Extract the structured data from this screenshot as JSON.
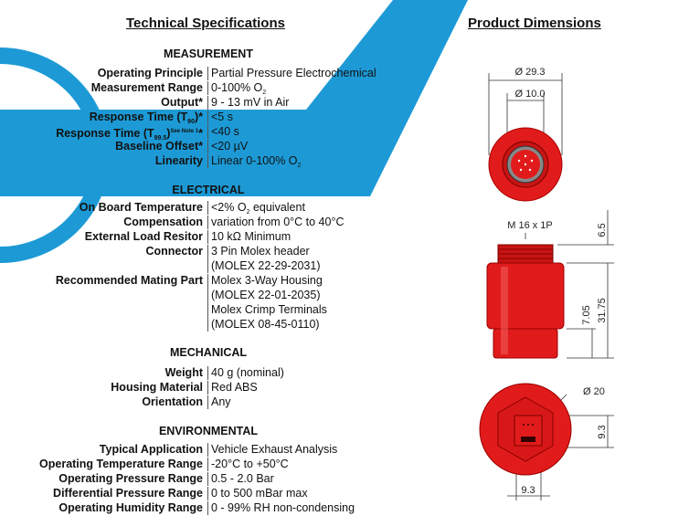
{
  "left_title": "Technical Specifications",
  "right_title": "Product Dimensions",
  "sections": [
    {
      "heading": "MEASUREMENT",
      "rows": [
        {
          "label": "Operating Principle",
          "values": [
            "Partial Pressure Electrochemical"
          ]
        },
        {
          "label": "Measurement Range",
          "values": [
            [
              "0-100% O",
              {
                "sub": "2"
              }
            ]
          ]
        },
        {
          "label": "Output*",
          "values": [
            "9 - 13 mV in Air"
          ]
        },
        {
          "label": [
            "Response Time (T",
            {
              "sub": "90"
            },
            ")*"
          ],
          "values": [
            "<5 s"
          ]
        },
        {
          "label": [
            "Response Time (T",
            {
              "sub": "99.5"
            },
            ")",
            {
              "sup": "See Note 1"
            },
            "*"
          ],
          "values": [
            "<40 s"
          ]
        },
        {
          "label": "Baseline  Offset*",
          "values": [
            "<20 µV"
          ]
        },
        {
          "label": "Linearity",
          "values": [
            [
              "Linear 0-100% O",
              {
                "sub": "2"
              }
            ]
          ]
        }
      ]
    },
    {
      "heading": "ELECTRICAL",
      "rows": [
        {
          "label": "On Board Temperature",
          "values": [
            [
              "<2% O",
              {
                "sub": "2"
              },
              " equivalent"
            ]
          ]
        },
        {
          "label": "Compensation",
          "values": [
            "variation from 0°C to 40°C"
          ]
        },
        {
          "label": "External  Load Resitor",
          "values": [
            "10 kΩ Minimum"
          ]
        },
        {
          "label": "Connector",
          "values": [
            "3 Pin Molex header",
            "(MOLEX 22-29-2031)"
          ]
        },
        {
          "label": "Recommended Mating Part",
          "values": [
            "Molex 3-Way Housing",
            "(MOLEX 22-01-2035)",
            "Molex Crimp Terminals",
            "(MOLEX 08-45-0110)"
          ]
        }
      ]
    },
    {
      "heading": "MECHANICAL",
      "rows": [
        {
          "label": "Weight",
          "values": [
            "40 g (nominal)"
          ]
        },
        {
          "label": "Housing Material",
          "values": [
            "Red ABS"
          ]
        },
        {
          "label": "Orientation",
          "values": [
            "Any"
          ]
        }
      ]
    },
    {
      "heading": "ENVIRONMENTAL",
      "rows": [
        {
          "label": "Typical Application",
          "values": [
            "Vehicle Exhaust Analysis"
          ]
        },
        {
          "label": "Operating Temperature Range",
          "values": [
            "-20°C  to +50°C"
          ]
        },
        {
          "label": "Operating Pressure Range",
          "values": [
            "0.5 - 2.0 Bar"
          ]
        },
        {
          "label": "Differential Pressure Range",
          "values": [
            "0 to 500 mBar max"
          ]
        },
        {
          "label": "Operating Humidity Range",
          "values": [
            "0 - 99% RH non-condensing"
          ]
        }
      ]
    }
  ],
  "dimensions": {
    "outer_diameter": "Ø 29.3",
    "inner_diameter": "Ø 10.0",
    "thread": "M  16  x 1P",
    "thread_height": "6.5",
    "body_height": "31.75",
    "base_height": "7.05",
    "base_diameter": "Ø 20",
    "connector_height": "9.3",
    "connector_width": "9.3"
  }
}
